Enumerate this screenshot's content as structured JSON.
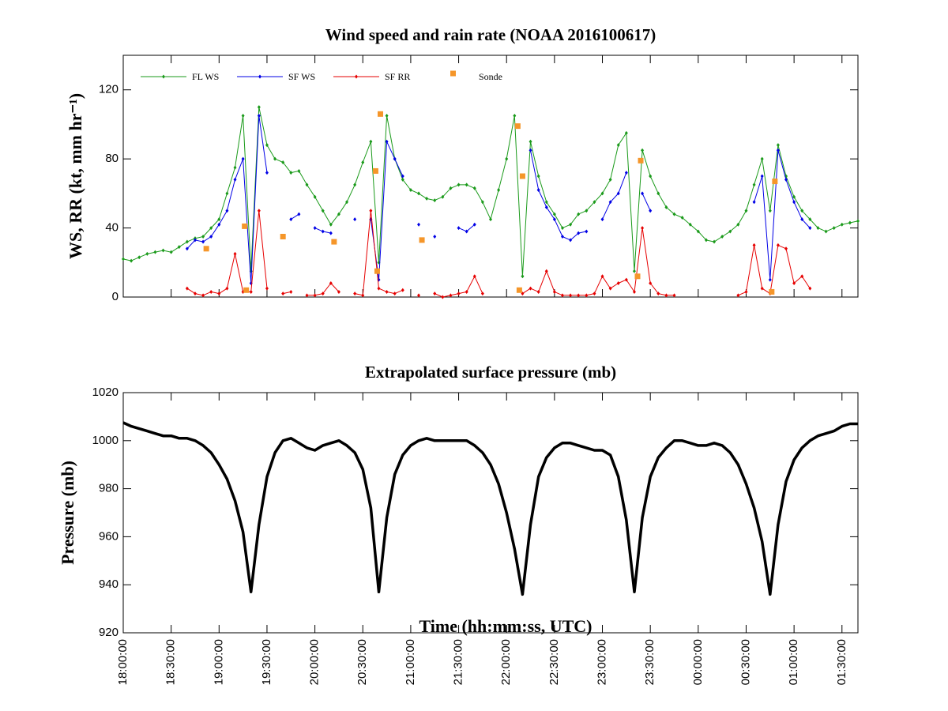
{
  "chart_data": [
    {
      "type": "line",
      "title": "Wind speed and rain rate (NOAA 2016100617)",
      "y_label": "WS, RR (kt, mm hr⁻¹)",
      "xlim": [
        "18:00:00",
        "01:40:00"
      ],
      "ylim": [
        0,
        140
      ],
      "yticks": [
        0,
        40,
        80,
        120
      ],
      "legend": "upper left",
      "x": [
        "18:00:00",
        "18:05:00",
        "18:10:00",
        "18:15:00",
        "18:20:00",
        "18:25:00",
        "18:30:00",
        "18:35:00",
        "18:40:00",
        "18:45:00",
        "18:50:00",
        "18:55:00",
        "19:00:00",
        "19:05:00",
        "19:10:00",
        "19:15:00",
        "19:20:00",
        "19:25:00",
        "19:30:00",
        "19:35:00",
        "19:40:00",
        "19:45:00",
        "19:50:00",
        "19:55:00",
        "20:00:00",
        "20:05:00",
        "20:10:00",
        "20:15:00",
        "20:20:00",
        "20:25:00",
        "20:30:00",
        "20:35:00",
        "20:40:00",
        "20:45:00",
        "20:50:00",
        "20:55:00",
        "21:00:00",
        "21:05:00",
        "21:10:00",
        "21:15:00",
        "21:20:00",
        "21:25:00",
        "21:30:00",
        "21:35:00",
        "21:40:00",
        "21:45:00",
        "21:50:00",
        "21:55:00",
        "22:00:00",
        "22:05:00",
        "22:10:00",
        "22:15:00",
        "22:20:00",
        "22:25:00",
        "22:30:00",
        "22:35:00",
        "22:40:00",
        "22:45:00",
        "22:50:00",
        "22:55:00",
        "23:00:00",
        "23:05:00",
        "23:10:00",
        "23:15:00",
        "23:20:00",
        "23:25:00",
        "23:30:00",
        "23:35:00",
        "23:40:00",
        "23:45:00",
        "23:50:00",
        "23:55:00",
        "00:00:00",
        "00:05:00",
        "00:10:00",
        "00:15:00",
        "00:20:00",
        "00:25:00",
        "00:30:00",
        "00:35:00",
        "00:40:00",
        "00:45:00",
        "00:50:00",
        "00:55:00",
        "01:00:00",
        "01:05:00",
        "01:10:00",
        "01:15:00",
        "01:20:00",
        "01:25:00",
        "01:30:00",
        "01:35:00",
        "01:40:00"
      ],
      "series": [
        {
          "name": "FL WS",
          "color": "#1a9a1a",
          "mode": "lines+markers",
          "values": [
            22,
            21,
            23,
            25,
            26,
            27,
            26,
            29,
            32,
            34,
            35,
            40,
            45,
            60,
            75,
            105,
            15,
            110,
            88,
            80,
            78,
            72,
            73,
            65,
            58,
            50,
            42,
            48,
            55,
            65,
            78,
            90,
            20,
            105,
            80,
            68,
            62,
            60,
            57,
            56,
            58,
            63,
            65,
            65,
            63,
            55,
            45,
            62,
            80,
            105,
            12,
            90,
            70,
            55,
            48,
            40,
            42,
            48,
            50,
            55,
            60,
            68,
            88,
            95,
            15,
            85,
            70,
            60,
            52,
            48,
            46,
            42,
            38,
            33,
            32,
            35,
            38,
            42,
            50,
            65,
            80,
            50,
            88,
            70,
            58,
            50,
            45,
            40,
            38,
            40,
            42,
            43,
            44
          ]
        },
        {
          "name": "SF WS",
          "color": "#0000e6",
          "mode": "lines+markers",
          "values": [
            null,
            null,
            null,
            null,
            null,
            null,
            null,
            null,
            28,
            33,
            32,
            35,
            42,
            50,
            68,
            80,
            8,
            105,
            72,
            null,
            null,
            45,
            48,
            null,
            40,
            38,
            37,
            null,
            null,
            45,
            null,
            45,
            10,
            90,
            80,
            70,
            null,
            42,
            null,
            35,
            null,
            null,
            40,
            38,
            42,
            null,
            null,
            null,
            null,
            null,
            null,
            85,
            62,
            52,
            45,
            35,
            33,
            37,
            38,
            null,
            45,
            55,
            60,
            72,
            null,
            60,
            50,
            null,
            null,
            null,
            null,
            null,
            null,
            null,
            null,
            null,
            null,
            null,
            null,
            55,
            70,
            10,
            85,
            68,
            55,
            45,
            40,
            null,
            null,
            null,
            null,
            null,
            null
          ]
        },
        {
          "name": "SF RR",
          "color": "#e60000",
          "mode": "lines+markers",
          "values": [
            null,
            null,
            null,
            null,
            null,
            null,
            null,
            null,
            5,
            2,
            1,
            3,
            2,
            5,
            25,
            3,
            3,
            50,
            5,
            null,
            2,
            3,
            null,
            1,
            1,
            2,
            8,
            3,
            null,
            2,
            1,
            50,
            5,
            3,
            2,
            4,
            null,
            1,
            null,
            2,
            0,
            1,
            2,
            3,
            12,
            2,
            null,
            null,
            null,
            null,
            2,
            5,
            3,
            15,
            3,
            1,
            1,
            1,
            1,
            2,
            12,
            5,
            8,
            10,
            3,
            40,
            8,
            2,
            1,
            1,
            null,
            null,
            null,
            null,
            null,
            null,
            null,
            1,
            3,
            30,
            5,
            2,
            30,
            28,
            8,
            12,
            5,
            null,
            null,
            null,
            null,
            null,
            null
          ]
        },
        {
          "name": "Sonde",
          "color": "#f5962a",
          "mode": "markers",
          "x": [
            "18:52:00",
            "19:16:00",
            "19:17:00",
            "19:40:00",
            "20:12:00",
            "20:38:00",
            "20:39:00",
            "20:41:00",
            "21:07:00",
            "22:07:00",
            "22:08:00",
            "22:10:00",
            "23:22:00",
            "23:24:00",
            "00:46:00",
            "00:48:00"
          ],
          "values": [
            28,
            41,
            4,
            35,
            32,
            73,
            15,
            106,
            33,
            99,
            4,
            70,
            12,
            79,
            3,
            67
          ]
        }
      ]
    },
    {
      "type": "line",
      "title": "Extrapolated surface pressure (mb)",
      "y_label": "Pressure (mb)",
      "x_label": "Time (hh:mm:ss, UTC)",
      "xlim": [
        "18:00:00",
        "01:40:00"
      ],
      "xticks": [
        "18:00:00",
        "18:30:00",
        "19:00:00",
        "19:30:00",
        "20:00:00",
        "20:30:00",
        "21:00:00",
        "21:30:00",
        "22:00:00",
        "22:30:00",
        "23:00:00",
        "23:30:00",
        "00:00:00",
        "00:30:00",
        "01:00:00",
        "01:30:00"
      ],
      "ylim": [
        920,
        1020
      ],
      "yticks": [
        920,
        940,
        960,
        980,
        1000,
        1020
      ],
      "x": [
        "18:00:00",
        "18:05:00",
        "18:10:00",
        "18:15:00",
        "18:20:00",
        "18:25:00",
        "18:30:00",
        "18:35:00",
        "18:40:00",
        "18:45:00",
        "18:50:00",
        "18:55:00",
        "19:00:00",
        "19:05:00",
        "19:10:00",
        "19:15:00",
        "19:20:00",
        "19:25:00",
        "19:30:00",
        "19:35:00",
        "19:40:00",
        "19:45:00",
        "19:50:00",
        "19:55:00",
        "20:00:00",
        "20:05:00",
        "20:10:00",
        "20:15:00",
        "20:20:00",
        "20:25:00",
        "20:30:00",
        "20:35:00",
        "20:40:00",
        "20:45:00",
        "20:50:00",
        "20:55:00",
        "21:00:00",
        "21:05:00",
        "21:10:00",
        "21:15:00",
        "21:20:00",
        "21:25:00",
        "21:30:00",
        "21:35:00",
        "21:40:00",
        "21:45:00",
        "21:50:00",
        "21:55:00",
        "22:00:00",
        "22:05:00",
        "22:10:00",
        "22:15:00",
        "22:20:00",
        "22:25:00",
        "22:30:00",
        "22:35:00",
        "22:40:00",
        "22:45:00",
        "22:50:00",
        "22:55:00",
        "23:00:00",
        "23:05:00",
        "23:10:00",
        "23:15:00",
        "23:20:00",
        "23:25:00",
        "23:30:00",
        "23:35:00",
        "23:40:00",
        "23:45:00",
        "23:50:00",
        "23:55:00",
        "00:00:00",
        "00:05:00",
        "00:10:00",
        "00:15:00",
        "00:20:00",
        "00:25:00",
        "00:30:00",
        "00:35:00",
        "00:40:00",
        "00:45:00",
        "00:50:00",
        "00:55:00",
        "01:00:00",
        "01:05:00",
        "01:10:00",
        "01:15:00",
        "01:20:00",
        "01:25:00",
        "01:30:00",
        "01:35:00",
        "01:40:00"
      ],
      "series": [
        {
          "name": "Pressure",
          "color": "#000000",
          "mode": "lines",
          "values": [
            1007.5,
            1006,
            1005,
            1004,
            1003,
            1002,
            1002,
            1001,
            1001,
            1000,
            998,
            995,
            990,
            984,
            975,
            962,
            937,
            965,
            985,
            995,
            1000,
            1001,
            999,
            997,
            996,
            998,
            999,
            1000,
            998,
            995,
            988,
            972,
            937,
            968,
            986,
            994,
            998,
            1000,
            1001,
            1000,
            1000,
            1000,
            1000,
            1000,
            998,
            995,
            990,
            982,
            970,
            955,
            936,
            965,
            985,
            993,
            997,
            999,
            999,
            998,
            997,
            996,
            996,
            994,
            985,
            967,
            937,
            968,
            985,
            993,
            997,
            1000,
            1000,
            999,
            998,
            998,
            999,
            998,
            995,
            990,
            982,
            972,
            958,
            936,
            965,
            983,
            992,
            997,
            1000,
            1002,
            1003,
            1004,
            1006,
            1007,
            1007
          ]
        }
      ]
    }
  ]
}
